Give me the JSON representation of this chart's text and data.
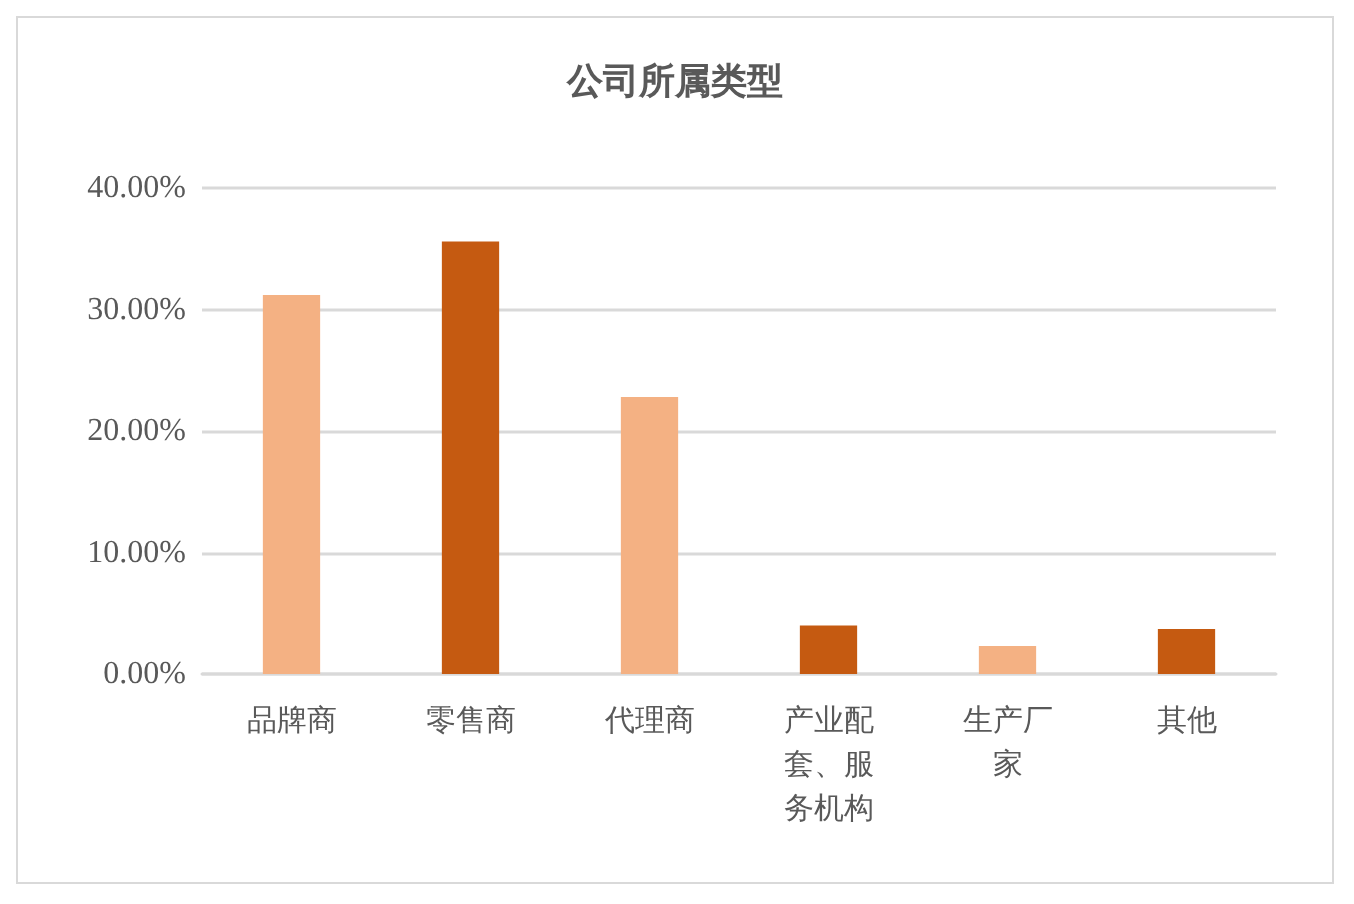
{
  "chart_data": {
    "type": "bar",
    "title": "公司所属类型",
    "categories": [
      "品牌商",
      "零售商",
      "代理商",
      "产业配套、服务机构",
      "生产厂家",
      "其他"
    ],
    "values": [
      31.2,
      35.6,
      22.8,
      4.0,
      2.3,
      3.7
    ],
    "colors": [
      "#f4b183",
      "#c55a11",
      "#f4b183",
      "#c55a11",
      "#f4b183",
      "#c55a11"
    ],
    "ylim": [
      0,
      40
    ],
    "yticks": [
      {
        "value": 0,
        "label": "0.00%"
      },
      {
        "value": 10,
        "label": "10.00%"
      },
      {
        "value": 20,
        "label": "20.00%"
      },
      {
        "value": 30,
        "label": "30.00%"
      },
      {
        "value": 40,
        "label": "40.00%"
      }
    ],
    "grid": true
  }
}
